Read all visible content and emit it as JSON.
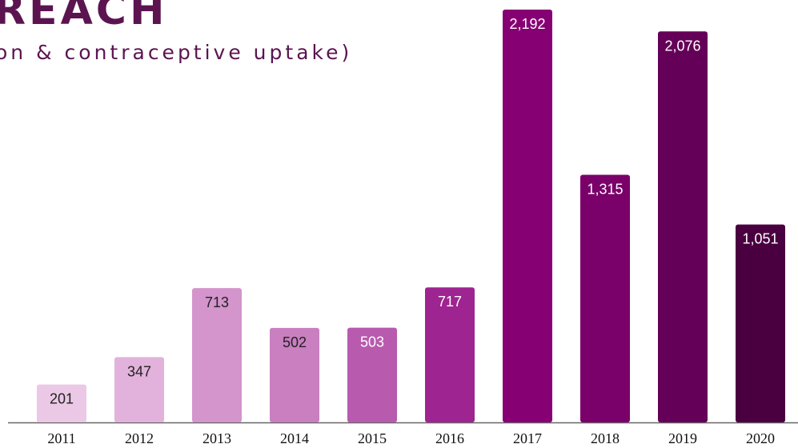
{
  "chart_data": {
    "type": "bar",
    "title": "REACH",
    "subtitle": "on & contraceptive uptake)",
    "categories": [
      "2011",
      "2012",
      "2013",
      "2014",
      "2015",
      "2016",
      "2017",
      "2018",
      "2019",
      "2020"
    ],
    "values": [
      201,
      347,
      713,
      502,
      503,
      717,
      2192,
      1315,
      2076,
      1051
    ],
    "value_labels": [
      "201",
      "347",
      "713",
      "502",
      "503",
      "717",
      "2,192",
      "1,315",
      "2,076",
      "1,051"
    ],
    "colors": [
      "#ebc8e6",
      "#e2b2dc",
      "#d494cc",
      "#c97fc0",
      "#b85aae",
      "#9e2491",
      "#870073",
      "#7a006a",
      "#650058",
      "#4a0040"
    ]
  }
}
